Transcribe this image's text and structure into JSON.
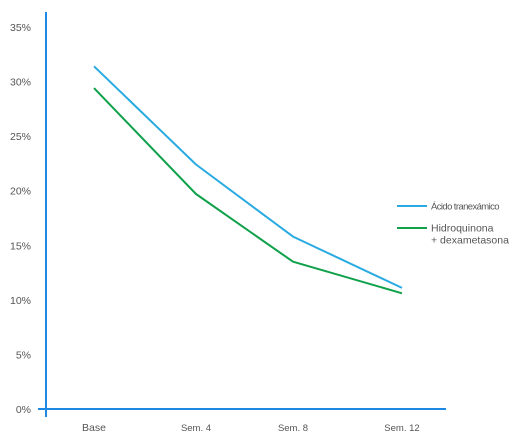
{
  "chart_data": {
    "type": "line",
    "title": "",
    "xlabel": "",
    "ylabel": "",
    "categories": [
      "Base",
      "Sem. 4",
      "Sem. 8",
      "Sem. 12"
    ],
    "yticks": [
      "0%",
      "5%",
      "10%",
      "15%",
      "20%",
      "25%",
      "30%",
      "35%"
    ],
    "ylim": [
      0,
      35
    ],
    "grid": false,
    "legend_position": "right",
    "series": [
      {
        "name": "Ácido tranexámico",
        "color": "#29ABE2",
        "values": [
          31.4,
          22.4,
          15.8,
          11.1
        ]
      },
      {
        "name_lines": [
          "Hidroquinona",
          "+ dexametasona"
        ],
        "color": "#0FA14A",
        "values": [
          29.4,
          19.7,
          13.5,
          10.6
        ]
      }
    ],
    "axis_color": "#1E88E5"
  }
}
